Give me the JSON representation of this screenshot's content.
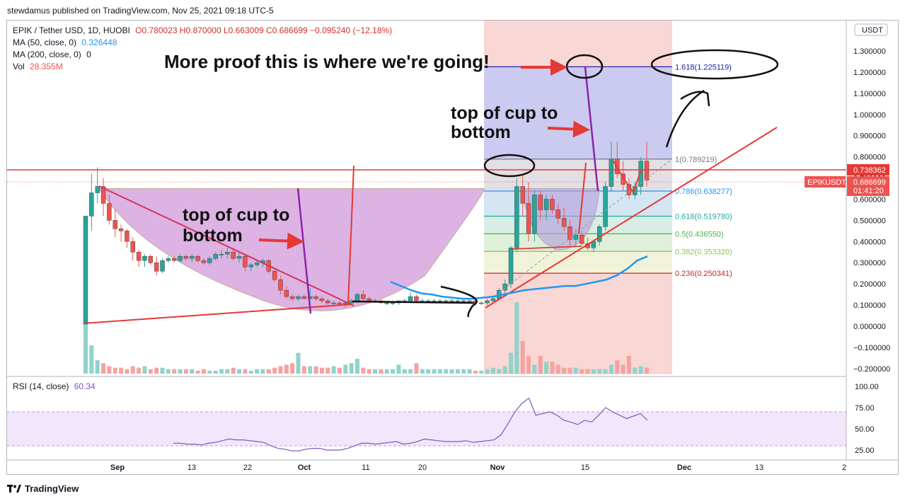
{
  "header": {
    "published": "stewdamus published on TradingView.com, Nov 25, 2021 09:18 UTC-5"
  },
  "legend": {
    "symbol": "EPIK / Tether USD, 1D, HUOBI",
    "ohlc": "O0.780023  H0.870000  L0.663009  C0.686699  −0.095240 (−12.18%)",
    "ma50_label": "MA (50, close, 0)",
    "ma50_value": "0.326448",
    "ma200_label": "MA (200, close, 0)",
    "ma200_value": "0",
    "vol_label": "Vol",
    "vol_value": "28.355M",
    "rsi_label": "RSI (14, close)",
    "rsi_value": "60.34"
  },
  "price_axis": {
    "currency": "USDT",
    "ticks": [
      "1.300000",
      "1.200000",
      "1.100000",
      "1.000000",
      "0.900000",
      "0.800000",
      "0.700000",
      "0.600000",
      "0.500000",
      "0.400000",
      "0.300000",
      "0.200000",
      "0.100000",
      "0.000000",
      "−0.100000",
      "−0.200000"
    ],
    "tick_values": [
      1.3,
      1.2,
      1.1,
      1.0,
      0.9,
      0.8,
      0.7,
      0.6,
      0.5,
      0.4,
      0.3,
      0.2,
      0.1,
      0.0,
      -0.1,
      -0.2
    ],
    "label_red": "0.738362",
    "symbol_tag": "EPIKUSDT",
    "last_price": "0.686699",
    "countdown": "01:41:20"
  },
  "rsi_axis": {
    "ticks": [
      "100.00",
      "75.00",
      "50.00",
      "25.00"
    ],
    "tick_values": [
      100,
      75,
      50,
      25
    ]
  },
  "time_axis": {
    "labels": [
      "Sep",
      "13",
      "22",
      "Oct",
      "11",
      "20",
      "Nov",
      "15",
      "Dec",
      "13",
      "2"
    ],
    "bold": [
      true,
      false,
      false,
      true,
      false,
      false,
      true,
      false,
      true,
      false,
      false
    ]
  },
  "fib_levels": [
    {
      "label": "1.618(1.225119)",
      "value": 1.225119,
      "color": "#1e22aa"
    },
    {
      "label": "1(0.789219)",
      "value": 0.789219,
      "color": "#787b86"
    },
    {
      "label": "0.786(0.638277)",
      "value": 0.638277,
      "color": "#2196f3"
    },
    {
      "label": "0.618(0.519780)",
      "value": 0.51978,
      "color": "#26a69a"
    },
    {
      "label": "0.5(0.436550)",
      "value": 0.43655,
      "color": "#4caf50"
    },
    {
      "label": "0.382(0.353320)",
      "value": 0.35332,
      "color": "#8bc34a"
    },
    {
      "label": "0.236(0.250341)",
      "value": 0.250341,
      "color": "#c62828"
    }
  ],
  "annotations": {
    "proof": "More proof this is where we're going!",
    "cup_left_line1": "top of cup to",
    "cup_left_line2": "bottom",
    "cup_right_line1": "top of cup to",
    "cup_right_line2": "bottom"
  },
  "colors": {
    "up": "#26a69a",
    "down": "#ef5350",
    "rsi": "#7e57c2",
    "ma50": "#2196f3",
    "cup": "#ce93d8"
  },
  "chart_data": {
    "type": "candlestick",
    "title": "EPIK / Tether USD, 1D, HUOBI",
    "candles_ohlc": [
      [
        0.01,
        0.52,
        0.01,
        0.52
      ],
      [
        0.52,
        0.72,
        0.45,
        0.63
      ],
      [
        0.63,
        0.75,
        0.58,
        0.66
      ],
      [
        0.66,
        0.7,
        0.52,
        0.58
      ],
      [
        0.58,
        0.62,
        0.48,
        0.5
      ],
      [
        0.5,
        0.55,
        0.42,
        0.46
      ],
      [
        0.46,
        0.48,
        0.4,
        0.45
      ],
      [
        0.45,
        0.46,
        0.37,
        0.4
      ],
      [
        0.4,
        0.42,
        0.31,
        0.35
      ],
      [
        0.35,
        0.36,
        0.28,
        0.31
      ],
      [
        0.31,
        0.34,
        0.28,
        0.33
      ],
      [
        0.33,
        0.34,
        0.29,
        0.3
      ],
      [
        0.3,
        0.33,
        0.24,
        0.26
      ],
      [
        0.26,
        0.32,
        0.25,
        0.31
      ],
      [
        0.31,
        0.33,
        0.3,
        0.32
      ],
      [
        0.32,
        0.33,
        0.3,
        0.31
      ],
      [
        0.31,
        0.34,
        0.3,
        0.33
      ],
      [
        0.33,
        0.34,
        0.31,
        0.32
      ],
      [
        0.32,
        0.34,
        0.3,
        0.33
      ],
      [
        0.33,
        0.34,
        0.3,
        0.31
      ],
      [
        0.31,
        0.32,
        0.29,
        0.3
      ],
      [
        0.3,
        0.33,
        0.29,
        0.32
      ],
      [
        0.32,
        0.35,
        0.31,
        0.34
      ],
      [
        0.34,
        0.36,
        0.32,
        0.34
      ],
      [
        0.34,
        0.37,
        0.32,
        0.35
      ],
      [
        0.35,
        0.36,
        0.31,
        0.32
      ],
      [
        0.32,
        0.35,
        0.3,
        0.33
      ],
      [
        0.33,
        0.34,
        0.26,
        0.28
      ],
      [
        0.28,
        0.3,
        0.26,
        0.29
      ],
      [
        0.29,
        0.31,
        0.28,
        0.3
      ],
      [
        0.3,
        0.32,
        0.28,
        0.31
      ],
      [
        0.31,
        0.32,
        0.25,
        0.26
      ],
      [
        0.26,
        0.27,
        0.21,
        0.22
      ],
      [
        0.22,
        0.24,
        0.15,
        0.17
      ],
      [
        0.17,
        0.19,
        0.13,
        0.14
      ],
      [
        0.14,
        0.15,
        0.12,
        0.13
      ],
      [
        0.13,
        0.15,
        0.12,
        0.14
      ],
      [
        0.14,
        0.15,
        0.13,
        0.13
      ],
      [
        0.13,
        0.18,
        0.13,
        0.14
      ],
      [
        0.14,
        0.15,
        0.12,
        0.13
      ],
      [
        0.13,
        0.14,
        0.11,
        0.12
      ],
      [
        0.12,
        0.13,
        0.1,
        0.11
      ],
      [
        0.11,
        0.12,
        0.1,
        0.11
      ],
      [
        0.11,
        0.12,
        0.1,
        0.1
      ],
      [
        0.1,
        0.12,
        0.09,
        0.11
      ],
      [
        0.11,
        0.13,
        0.1,
        0.12
      ],
      [
        0.12,
        0.16,
        0.11,
        0.15
      ],
      [
        0.15,
        0.17,
        0.12,
        0.13
      ],
      [
        0.13,
        0.14,
        0.11,
        0.12
      ],
      [
        0.12,
        0.13,
        0.11,
        0.12
      ],
      [
        0.12,
        0.13,
        0.11,
        0.11
      ],
      [
        0.11,
        0.12,
        0.1,
        0.11
      ],
      [
        0.11,
        0.12,
        0.1,
        0.11
      ],
      [
        0.11,
        0.12,
        0.1,
        0.12
      ],
      [
        0.12,
        0.13,
        0.11,
        0.12
      ],
      [
        0.12,
        0.16,
        0.11,
        0.14
      ],
      [
        0.14,
        0.15,
        0.11,
        0.12
      ],
      [
        0.12,
        0.13,
        0.11,
        0.12
      ],
      [
        0.12,
        0.13,
        0.11,
        0.12
      ],
      [
        0.12,
        0.13,
        0.11,
        0.12
      ],
      [
        0.12,
        0.13,
        0.11,
        0.12
      ],
      [
        0.12,
        0.13,
        0.11,
        0.12
      ],
      [
        0.12,
        0.13,
        0.11,
        0.12
      ],
      [
        0.12,
        0.13,
        0.11,
        0.12
      ],
      [
        0.12,
        0.13,
        0.11,
        0.12
      ],
      [
        0.12,
        0.13,
        0.11,
        0.12
      ],
      [
        0.12,
        0.13,
        0.1,
        0.11
      ],
      [
        0.11,
        0.12,
        0.1,
        0.11
      ],
      [
        0.11,
        0.13,
        0.1,
        0.12
      ],
      [
        0.12,
        0.14,
        0.11,
        0.13
      ],
      [
        0.13,
        0.18,
        0.12,
        0.17
      ],
      [
        0.17,
        0.22,
        0.15,
        0.2
      ],
      [
        0.2,
        0.38,
        0.18,
        0.37
      ],
      [
        0.37,
        0.7,
        0.35,
        0.66
      ],
      [
        0.66,
        0.72,
        0.52,
        0.58
      ],
      [
        0.58,
        0.68,
        0.4,
        0.44
      ],
      [
        0.44,
        0.64,
        0.4,
        0.62
      ],
      [
        0.62,
        0.64,
        0.5,
        0.55
      ],
      [
        0.55,
        0.62,
        0.5,
        0.6
      ],
      [
        0.6,
        0.62,
        0.53,
        0.55
      ],
      [
        0.55,
        0.58,
        0.48,
        0.51
      ],
      [
        0.51,
        0.56,
        0.45,
        0.47
      ],
      [
        0.47,
        0.5,
        0.38,
        0.41
      ],
      [
        0.41,
        0.46,
        0.38,
        0.43
      ],
      [
        0.43,
        0.45,
        0.38,
        0.39
      ],
      [
        0.39,
        0.42,
        0.36,
        0.37
      ],
      [
        0.37,
        0.41,
        0.35,
        0.4
      ],
      [
        0.4,
        0.48,
        0.38,
        0.47
      ],
      [
        0.47,
        0.68,
        0.45,
        0.66
      ],
      [
        0.66,
        0.87,
        0.64,
        0.79
      ],
      [
        0.79,
        0.87,
        0.7,
        0.72
      ],
      [
        0.72,
        0.78,
        0.64,
        0.67
      ],
      [
        0.67,
        0.7,
        0.6,
        0.62
      ],
      [
        0.62,
        0.68,
        0.6,
        0.66
      ],
      [
        0.66,
        0.8,
        0.62,
        0.78
      ],
      [
        0.78,
        0.87,
        0.66,
        0.69
      ]
    ],
    "volume": [
      42,
      19,
      9,
      7,
      5,
      4,
      4,
      3,
      5,
      4,
      5,
      3,
      4,
      4,
      3,
      3,
      3,
      3,
      3,
      2,
      3,
      2,
      2,
      3,
      3,
      4,
      3,
      3,
      2,
      3,
      3,
      3,
      4,
      5,
      6,
      7,
      14,
      5,
      5,
      5,
      4,
      4,
      5,
      4,
      6,
      7,
      10,
      4,
      3,
      3,
      3,
      3,
      3,
      6,
      3,
      3,
      7,
      3,
      3,
      3,
      3,
      3,
      3,
      3,
      3,
      3,
      2,
      2,
      3,
      4,
      3,
      5,
      14,
      48,
      22,
      12,
      6,
      12,
      8,
      8,
      6,
      4,
      4,
      4,
      3,
      3,
      3,
      3,
      3,
      6,
      9,
      6,
      12,
      4,
      5,
      4,
      6,
      6
    ],
    "rsi": [
      33,
      33,
      32,
      32,
      31,
      33,
      34,
      36,
      38,
      37,
      37,
      36,
      35,
      34,
      30,
      27,
      26,
      24,
      24,
      26,
      27,
      27,
      25,
      25,
      25,
      27,
      30,
      33,
      33,
      32,
      33,
      34,
      35,
      32,
      33,
      35,
      38,
      37,
      36,
      35,
      35,
      35,
      36,
      34,
      35,
      36,
      37,
      43,
      56,
      70,
      80,
      86,
      66,
      68,
      70,
      66,
      60,
      58,
      55,
      60,
      58,
      66,
      75,
      70,
      66,
      62,
      65,
      68,
      60
    ],
    "ma50": [
      0.21,
      0.19,
      0.17,
      0.155,
      0.15,
      0.14,
      0.135,
      0.13,
      0.13,
      0.135,
      0.14,
      0.15,
      0.16,
      0.17,
      0.175,
      0.18,
      0.185,
      0.19,
      0.19,
      0.2,
      0.21,
      0.22,
      0.24,
      0.27,
      0.31,
      0.33
    ],
    "ylim": [
      -0.22,
      1.38
    ],
    "rsi_ylim": [
      10,
      105
    ],
    "x_labels": [
      "Sep",
      "13",
      "22",
      "Oct",
      "11",
      "20",
      "Nov",
      "15",
      "Dec",
      "13",
      "2"
    ]
  }
}
